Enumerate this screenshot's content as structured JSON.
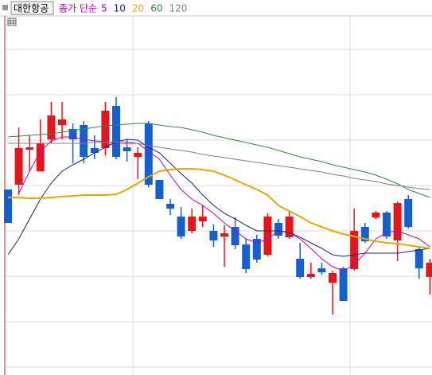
{
  "chart_data": {
    "type": "candlestick",
    "title": "대한항공",
    "ma_label": "종가 단순",
    "ma_label_color": "#c000c0",
    "up_color": "#e8141c",
    "down_color": "#1560d0",
    "open": [
      262,
      268,
      312,
      285,
      325,
      343,
      338,
      343,
      314,
      314,
      367,
      315,
      303,
      345,
      274,
      244,
      228,
      210,
      222,
      210,
      203,
      215,
      193,
      200,
      180,
      220,
      202,
      175,
      152,
      163,
      145,
      163,
      162,
      215,
      227,
      233,
      198,
      250,
      187,
      152
    ],
    "close": [
      220,
      314,
      315,
      320,
      355,
      350,
      325,
      303,
      308,
      361,
      303,
      310,
      308,
      268,
      250,
      238,
      203,
      228,
      228,
      198,
      207,
      192,
      162,
      174,
      228,
      204,
      228,
      152,
      156,
      158,
      157,
      122,
      210,
      197,
      233,
      203,
      245,
      215,
      163,
      170
    ],
    "high": [
      262,
      340,
      330,
      350,
      372,
      372,
      345,
      348,
      330,
      372,
      378,
      325,
      315,
      348,
      274,
      250,
      240,
      238,
      242,
      218,
      217,
      227,
      200,
      205,
      232,
      225,
      235,
      195,
      170,
      170,
      160,
      165,
      238,
      220,
      235,
      235,
      247,
      255,
      190,
      175
    ],
    "low": [
      220,
      255,
      285,
      285,
      320,
      325,
      295,
      295,
      300,
      305,
      300,
      297,
      275,
      265,
      250,
      230,
      200,
      207,
      215,
      190,
      165,
      187,
      157,
      170,
      178,
      200,
      200,
      150,
      150,
      155,
      105,
      122,
      160,
      195,
      225,
      200,
      172,
      213,
      150,
      130
    ],
    "series": [
      {
        "name": "5",
        "color": "#c000c0",
        "values": [
          null,
          257,
          285,
          310,
          323,
          328,
          328,
          325,
          323,
          322,
          320,
          320,
          320,
          310,
          300,
          280,
          262,
          250,
          242,
          232,
          220,
          210,
          200,
          195,
          200,
          210,
          208,
          200,
          188,
          175,
          165,
          160,
          168,
          182,
          200,
          208,
          210,
          205,
          200,
          190
        ]
      },
      {
        "name": "10",
        "color": "#1a237e",
        "values": [
          180,
          200,
          225,
          250,
          270,
          285,
          293,
          300,
          308,
          315,
          322,
          325,
          324,
          315,
          308,
          295,
          282,
          270,
          255,
          242,
          232,
          225,
          217,
          210,
          210,
          210,
          208,
          202,
          195,
          188,
          180,
          178,
          180,
          182,
          182,
          182,
          182,
          184,
          186,
          188
        ]
      },
      {
        "name": "20",
        "color": "#e8a800",
        "values": [
          252,
          252,
          251,
          251,
          252,
          253,
          254,
          255,
          255,
          255,
          256,
          262,
          270,
          278,
          285,
          287,
          288,
          288,
          287,
          285,
          280,
          274,
          268,
          262,
          255,
          242,
          235,
          228,
          220,
          215,
          210,
          206,
          203,
          200,
          197,
          195,
          194,
          192,
          190,
          188
        ]
      },
      {
        "name": "60",
        "color": "#2e8b3a",
        "values": [
          328,
          329,
          330,
          331,
          332,
          334,
          336,
          338,
          340,
          342,
          343,
          344,
          345,
          345,
          343,
          341,
          340,
          337,
          334,
          330,
          327,
          324,
          321,
          318,
          315,
          311,
          307,
          303,
          300,
          297,
          293,
          290,
          287,
          284,
          280,
          275,
          269,
          262,
          257,
          252
        ]
      },
      {
        "name": "120",
        "color": "#808080",
        "values": [
          320,
          320,
          320,
          320,
          320,
          320,
          320,
          320,
          321,
          321,
          322,
          322,
          320,
          317,
          315,
          313,
          311,
          309,
          306,
          304,
          302,
          300,
          298,
          296,
          294,
          292,
          290,
          288,
          286,
          284,
          281,
          279,
          276,
          274,
          272,
          269,
          267,
          265,
          263,
          262
        ]
      }
    ],
    "ylim": [
      29,
      480
    ],
    "yticks": [
      39,
      96,
      153,
      210,
      267,
      324,
      381,
      438
    ],
    "grid": true
  }
}
